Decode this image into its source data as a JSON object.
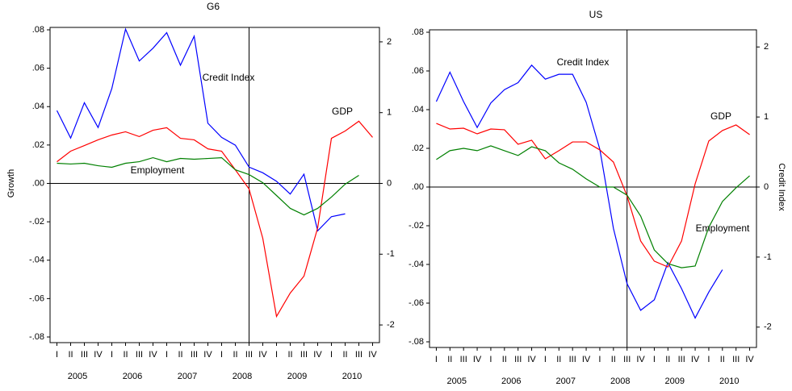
{
  "chart_data": [
    {
      "type": "line",
      "title": "G6",
      "ylabel": "Growth",
      "categories": [
        "I",
        "II",
        "III",
        "IV",
        "I",
        "II",
        "III",
        "IV",
        "I",
        "II",
        "III",
        "IV",
        "I",
        "II",
        "III",
        "IV",
        "I",
        "II",
        "III",
        "IV",
        "I",
        "II",
        "III",
        "IV"
      ],
      "years": [
        "2005",
        "2006",
        "2007",
        "2008",
        "2009",
        "2010"
      ],
      "ylim": [
        -0.08,
        0.08
      ],
      "yticks": [
        {
          "value": 0.08,
          "label": ".08"
        },
        {
          "value": 0.06,
          "label": ".06"
        },
        {
          "value": 0.04,
          "label": ".04"
        },
        {
          "value": 0.02,
          "label": ".02"
        },
        {
          "value": 0,
          "label": ".00"
        },
        {
          "value": -0.02,
          "label": "-.02"
        },
        {
          "value": -0.04,
          "label": "-.04"
        },
        {
          "value": -0.06,
          "label": "-.06"
        },
        {
          "value": -0.08,
          "label": "-.08"
        }
      ],
      "y2lim": [
        -2.17,
        2.17
      ],
      "y2ticks": [
        2,
        1,
        0,
        -1,
        -2
      ],
      "grid": false,
      "zero_line": true,
      "vline_index": 14,
      "series": [
        {
          "name": "Credit Index",
          "color": "#0000ff",
          "axis": "y2",
          "values": [
            1.03,
            0.64,
            1.14,
            0.79,
            1.34,
            2.18,
            1.73,
            1.91,
            2.13,
            1.67,
            2.08,
            0.85,
            0.65,
            0.54,
            0.23,
            0.15,
            0.03,
            -0.15,
            0.13,
            -0.67,
            -0.47,
            -0.43,
            null,
            null
          ]
        },
        {
          "name": "GDP",
          "color": "#ff0000",
          "values": [
            0.0113,
            0.0168,
            0.0197,
            0.0227,
            0.0252,
            0.0269,
            0.0244,
            0.0277,
            0.029,
            0.0235,
            0.0227,
            0.018,
            0.0168,
            0.0071,
            -0.0029,
            -0.0286,
            -0.0693,
            -0.0571,
            -0.0483,
            -0.0231,
            0.0235,
            0.0273,
            0.0324,
            0.024
          ]
        },
        {
          "name": "Employment",
          "color": "#008000",
          "values": [
            0.0105,
            0.0101,
            0.0105,
            0.0092,
            0.0084,
            0.0105,
            0.0113,
            0.0134,
            0.0113,
            0.013,
            0.0126,
            0.013,
            0.0134,
            0.0071,
            0.0046,
            0.0004,
            -0.0063,
            -0.013,
            -0.0164,
            -0.013,
            -0.0071,
            -0.0004,
            0.0042,
            null
          ]
        }
      ]
    },
    {
      "type": "line",
      "title": "US",
      "y2label": "Credit Index",
      "categories": [
        "I",
        "II",
        "III",
        "IV",
        "I",
        "II",
        "III",
        "IV",
        "I",
        "II",
        "III",
        "IV",
        "I",
        "II",
        "III",
        "IV",
        "I",
        "II",
        "III",
        "IV",
        "I",
        "II",
        "III",
        "IV"
      ],
      "years": [
        "2005",
        "2006",
        "2007",
        "2008",
        "2009",
        "2010"
      ],
      "ylim": [
        -0.08,
        0.08
      ],
      "yticks": [
        {
          "value": 0.08,
          "label": ".08"
        },
        {
          "value": 0.06,
          "label": ".06"
        },
        {
          "value": 0.04,
          "label": ".04"
        },
        {
          "value": 0.02,
          "label": ".02"
        },
        {
          "value": 0,
          "label": ".00"
        },
        {
          "value": -0.02,
          "label": "-.02"
        },
        {
          "value": -0.04,
          "label": "-.04"
        },
        {
          "value": -0.06,
          "label": "-.06"
        },
        {
          "value": -0.08,
          "label": "-.08"
        }
      ],
      "y2lim": [
        -2.21,
        2.21
      ],
      "y2ticks": [
        2,
        1,
        0,
        -1,
        -2
      ],
      "grid": false,
      "zero_line": true,
      "vline_index": 14,
      "series": [
        {
          "name": "Credit Index",
          "color": "#0000ff",
          "axis": "y2",
          "values": [
            1.22,
            1.64,
            1.22,
            0.85,
            1.2,
            1.39,
            1.49,
            1.74,
            1.54,
            1.61,
            1.61,
            1.21,
            0.54,
            -0.59,
            -1.38,
            -1.76,
            -1.61,
            -1.08,
            -1.45,
            -1.87,
            -1.5,
            -1.18,
            null,
            null
          ]
        },
        {
          "name": "GDP",
          "color": "#ff0000",
          "values": [
            0.0329,
            0.03,
            0.0304,
            0.0275,
            0.03,
            0.0296,
            0.0221,
            0.0242,
            0.0146,
            0.0188,
            0.0233,
            0.0233,
            0.0192,
            0.0129,
            -0.0046,
            -0.0279,
            -0.0383,
            -0.0413,
            -0.0279,
            0.0017,
            0.0238,
            0.0292,
            0.0321,
            0.0271
          ]
        },
        {
          "name": "Employment",
          "color": "#008000",
          "values": [
            0.0142,
            0.0188,
            0.02,
            0.0188,
            0.0213,
            0.0188,
            0.0163,
            0.0208,
            0.0188,
            0.0125,
            0.0092,
            0.0042,
            0,
            0,
            -0.0042,
            -0.015,
            -0.0325,
            -0.0396,
            -0.0417,
            -0.0408,
            -0.0208,
            -0.0075,
            -0.0004,
            0.0058
          ]
        }
      ]
    }
  ]
}
